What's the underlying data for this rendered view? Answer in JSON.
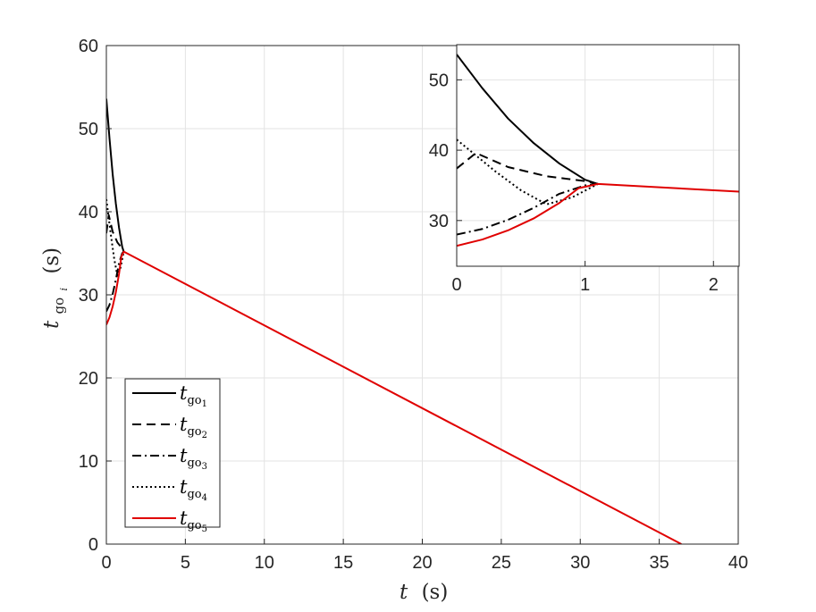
{
  "chart_data": [
    {
      "type": "line",
      "xlabel": {
        "var": "t",
        "unit": "(s)"
      },
      "ylabel": {
        "var": "t",
        "sub": "go",
        "subsub": "i",
        "unit": "(s)"
      },
      "xlim": [
        0,
        40
      ],
      "ylim": [
        0,
        60
      ],
      "xticks": [
        0,
        5,
        10,
        15,
        20,
        25,
        30,
        35,
        40
      ],
      "yticks": [
        0,
        10,
        20,
        30,
        40,
        50,
        60
      ],
      "grid": true,
      "legend_position": "bottom-left",
      "series": [
        {
          "name": "t_go1",
          "label_var": "t",
          "label_sub": "go",
          "label_idx": "1",
          "color": "#000000",
          "dash": "solid",
          "x": [
            0,
            0.2,
            0.4,
            0.6,
            0.8,
            1.0,
            1.1
          ],
          "y": [
            53.6,
            48.8,
            44.5,
            41.0,
            38.1,
            35.8,
            35.2
          ]
        },
        {
          "name": "t_go2",
          "label_var": "t",
          "label_sub": "go",
          "label_idx": "2",
          "color": "#000000",
          "dash": "dashed",
          "x": [
            0,
            0.15,
            0.4,
            0.7,
            1.0,
            1.1
          ],
          "y": [
            37.4,
            39.6,
            37.6,
            36.3,
            35.6,
            35.2
          ]
        },
        {
          "name": "t_go3",
          "label_var": "t",
          "label_sub": "go",
          "label_idx": "3",
          "color": "#000000",
          "dash": "dashdot",
          "x": [
            0,
            0.2,
            0.4,
            0.6,
            0.8,
            1.0,
            1.1
          ],
          "y": [
            28.0,
            28.8,
            30.1,
            31.8,
            33.8,
            35.0,
            35.2
          ]
        },
        {
          "name": "t_go4",
          "label_var": "t",
          "label_sub": "go",
          "label_idx": "4",
          "color": "#000000",
          "dash": "dotted",
          "x": [
            0,
            0.1,
            0.3,
            0.5,
            0.7,
            0.9,
            1.1
          ],
          "y": [
            41.5,
            40.0,
            37.0,
            34.3,
            32.3,
            33.3,
            35.2
          ]
        },
        {
          "name": "t_go5",
          "label_var": "t",
          "label_sub": "go",
          "label_idx": "5",
          "color": "#e00000",
          "dash": "solid",
          "x": [
            0,
            0.2,
            0.4,
            0.6,
            0.8,
            0.95,
            1.1,
            36.4
          ],
          "y": [
            26.4,
            27.3,
            28.6,
            30.3,
            32.5,
            34.6,
            35.2,
            0
          ]
        }
      ]
    },
    {
      "type": "line",
      "xlim": [
        0,
        2.2
      ],
      "ylim": [
        23.5,
        55
      ],
      "xticks": [
        0,
        1,
        2
      ],
      "yticks": [
        30,
        40,
        50
      ],
      "grid": true,
      "note": "inset"
    }
  ]
}
